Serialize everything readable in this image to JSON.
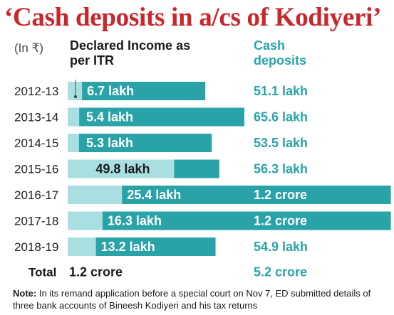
{
  "title": "‘Cash deposits in a/cs of Kodiyeri’",
  "unit_label": "(In ₹)",
  "headers": {
    "income": "Declared Income as per ITR",
    "cash": "Cash deposits"
  },
  "total": {
    "label": "Total",
    "income": "1.2 crore",
    "cash": "5.2 crore"
  },
  "note": {
    "label": "Note:",
    "text": " In its remand application before a special court on Nov 7, ED submitted details of three bank accounts of Bineesh Kodiyeri and his tax returns"
  },
  "colors": {
    "title": "#c9272c",
    "income_bar": "#a9dfe0",
    "cash_bar": "#29a3a8",
    "cash_text": "#2aa3a8"
  },
  "chart_data": {
    "type": "bar",
    "categories": [
      "2012-13",
      "2013-14",
      "2014-15",
      "2015-16",
      "2016-17",
      "2017-18",
      "2018-19"
    ],
    "series": [
      {
        "name": "Declared Income as per ITR",
        "values": [
          6.7,
          5.4,
          5.3,
          49.8,
          25.4,
          16.3,
          13.2
        ],
        "labels": [
          "6.7 lakh",
          "5.4 lakh",
          "5.3 lakh",
          "49.8 lakh",
          "25.4 lakh",
          "16.3 lakh",
          "13.2 lakh"
        ]
      },
      {
        "name": "Cash deposits",
        "values": [
          51.1,
          65.6,
          53.5,
          56.3,
          120,
          120,
          54.9
        ],
        "labels": [
          "51.1 lakh",
          "65.6 lakh",
          "53.5 lakh",
          "56.3 lakh",
          "1.2 crore",
          "1.2 crore",
          "54.9 lakh"
        ]
      }
    ]
  }
}
